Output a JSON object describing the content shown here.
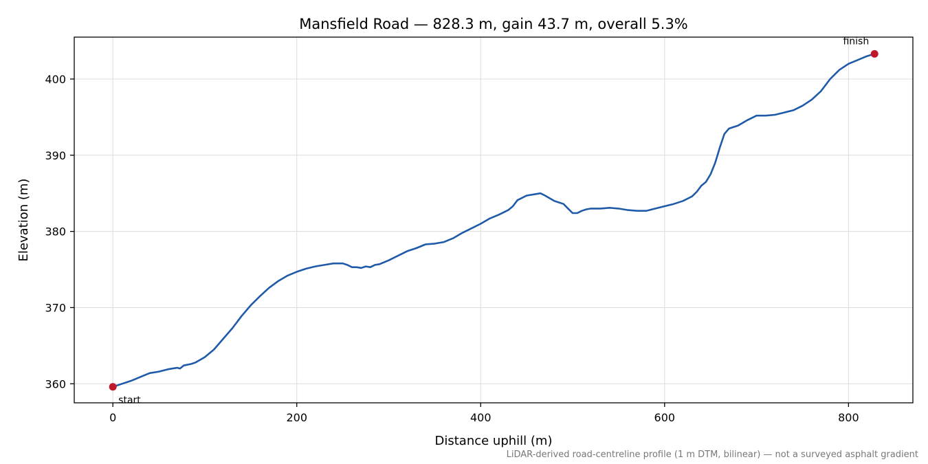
{
  "chart_data": {
    "type": "line",
    "title": "Mansfield Road — 828.3 m, gain 43.7 m, overall 5.3%",
    "xlabel": "Distance uphill (m)",
    "ylabel": "Elevation (m)",
    "xlim": [
      -42,
      870
    ],
    "ylim": [
      357.5,
      405.5
    ],
    "x_ticks": [
      0,
      200,
      400,
      600,
      800
    ],
    "y_ticks": [
      360,
      370,
      380,
      390,
      400
    ],
    "grid": true,
    "footnote": "LiDAR-derived road-centreline profile (1 m DTM, bilinear) — not a surveyed asphalt gradient",
    "series": [
      {
        "color": "#1f5aa8",
        "x": [
          0,
          10,
          20,
          30,
          40,
          50,
          60,
          70,
          73,
          77,
          85,
          90,
          100,
          110,
          120,
          130,
          140,
          150,
          160,
          170,
          180,
          190,
          200,
          210,
          220,
          230,
          240,
          250,
          255,
          260,
          265,
          270,
          275,
          280,
          285,
          290,
          300,
          310,
          320,
          330,
          340,
          350,
          360,
          370,
          380,
          390,
          400,
          410,
          420,
          430,
          435,
          440,
          450,
          460,
          465,
          470,
          480,
          485,
          490,
          495,
          500,
          505,
          510,
          515,
          520,
          530,
          540,
          550,
          560,
          570,
          580,
          590,
          600,
          610,
          620,
          630,
          635,
          640,
          645,
          650,
          655,
          660,
          665,
          670,
          680,
          690,
          700,
          710,
          720,
          730,
          740,
          750,
          760,
          770,
          780,
          790,
          800,
          810,
          820,
          828.3
        ],
        "y": [
          359.6,
          360.0,
          360.4,
          360.9,
          361.4,
          361.6,
          361.9,
          362.1,
          362.0,
          362.4,
          362.6,
          362.8,
          363.5,
          364.5,
          365.9,
          367.3,
          368.9,
          370.3,
          371.5,
          372.6,
          373.5,
          374.2,
          374.7,
          375.1,
          375.4,
          375.6,
          375.8,
          375.8,
          375.6,
          375.3,
          375.3,
          375.2,
          375.4,
          375.3,
          375.6,
          375.7,
          376.2,
          376.8,
          377.4,
          377.8,
          378.3,
          378.4,
          378.6,
          379.1,
          379.8,
          380.4,
          381.0,
          381.7,
          382.2,
          382.8,
          383.3,
          384.1,
          384.7,
          384.9,
          385.0,
          384.7,
          384.0,
          383.8,
          383.6,
          383.0,
          382.4,
          382.4,
          382.7,
          382.9,
          383.0,
          383.0,
          383.1,
          383.0,
          382.8,
          382.7,
          382.7,
          383.0,
          383.3,
          383.6,
          384.0,
          384.6,
          385.2,
          386.0,
          386.5,
          387.5,
          389.0,
          391.0,
          392.8,
          393.5,
          393.9,
          394.6,
          395.2,
          395.2,
          395.3,
          395.6,
          395.9,
          396.5,
          397.3,
          398.4,
          400.0,
          401.2,
          402.0,
          402.5,
          403.0,
          403.3
        ]
      }
    ],
    "annotations": [
      {
        "text": "start",
        "x": 0,
        "y": 359.6
      },
      {
        "text": "finish",
        "x": 828.3,
        "y": 403.3
      }
    ]
  }
}
